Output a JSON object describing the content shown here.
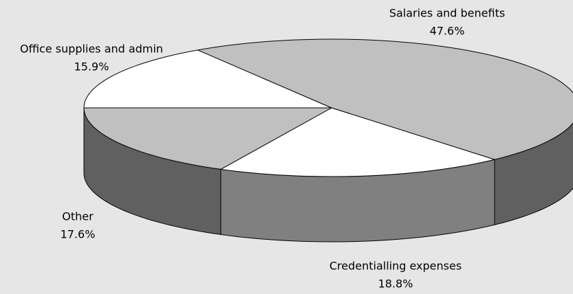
{
  "chart_data": {
    "type": "pie3d",
    "categories": [
      "Office supplies and admin",
      "Salaries and benefits",
      "Credentialling expenses",
      "Other"
    ],
    "values": [
      15.9,
      47.6,
      18.8,
      17.6
    ],
    "value_labels": [
      "15.9%",
      "47.6%",
      "18.8%",
      "17.6%"
    ],
    "colors": [
      "#ffffff",
      "#c0c0c0",
      "#ffffff",
      "#c0c0c0"
    ],
    "side_colors": [
      "#808080",
      "#606060",
      "#808080",
      "#606060"
    ]
  }
}
